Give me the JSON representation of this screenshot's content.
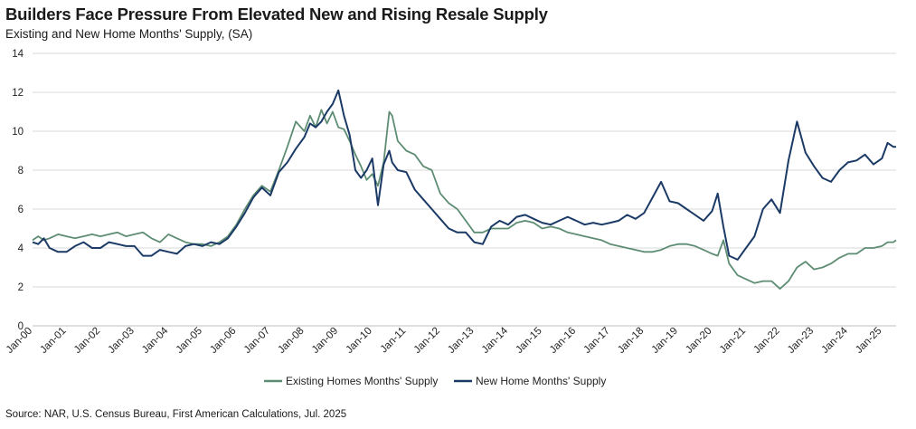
{
  "title": "Builders Face Pressure From Elevated New and Rising Resale Supply",
  "subtitle": "Existing and New Home Months' Supply, (SA)",
  "source": "Source: NAR, U.S. Census Bureau,  First American Calculations, Jul. 2025",
  "colors": {
    "existing": "#5e8d74",
    "new": "#1b3a66",
    "grid": "#d9d9d9",
    "axis": "#bfbfbf"
  },
  "chart_data": {
    "type": "line",
    "ylim": [
      0,
      14
    ],
    "y_ticks": [
      0,
      2,
      4,
      6,
      8,
      10,
      12,
      14
    ],
    "xlim": [
      "2000-01",
      "2025-06"
    ],
    "x_tick_labels": [
      "Jan-00",
      "Jan-01",
      "Jan-02",
      "Jan-03",
      "Jan-04",
      "Jan-05",
      "Jan-06",
      "Jan-07",
      "Jan-08",
      "Jan-09",
      "Jan-10",
      "Jan-11",
      "Jan-12",
      "Jan-13",
      "Jan-14",
      "Jan-15",
      "Jan-16",
      "Jan-17",
      "Jan-18",
      "Jan-19",
      "Jan-20",
      "Jan-21",
      "Jan-22",
      "Jan-23",
      "Jan-24",
      "Jan-25"
    ],
    "grid": true,
    "legend_position": "bottom",
    "series": [
      {
        "name": "Existing Homes Months' Supply",
        "color": "#5e8d74",
        "points": [
          [
            "2000-01",
            4.4
          ],
          [
            "2000-03",
            4.6
          ],
          [
            "2000-05",
            4.4
          ],
          [
            "2000-07",
            4.5
          ],
          [
            "2000-10",
            4.7
          ],
          [
            "2001-01",
            4.6
          ],
          [
            "2001-04",
            4.5
          ],
          [
            "2001-07",
            4.6
          ],
          [
            "2001-10",
            4.7
          ],
          [
            "2002-01",
            4.6
          ],
          [
            "2002-04",
            4.7
          ],
          [
            "2002-07",
            4.8
          ],
          [
            "2002-10",
            4.6
          ],
          [
            "2003-01",
            4.7
          ],
          [
            "2003-04",
            4.8
          ],
          [
            "2003-07",
            4.5
          ],
          [
            "2003-10",
            4.3
          ],
          [
            "2004-01",
            4.7
          ],
          [
            "2004-04",
            4.5
          ],
          [
            "2004-07",
            4.3
          ],
          [
            "2004-10",
            4.2
          ],
          [
            "2005-01",
            4.2
          ],
          [
            "2005-04",
            4.1
          ],
          [
            "2005-07",
            4.3
          ],
          [
            "2005-10",
            4.6
          ],
          [
            "2006-01",
            5.2
          ],
          [
            "2006-04",
            6.0
          ],
          [
            "2006-07",
            6.7
          ],
          [
            "2006-10",
            7.2
          ],
          [
            "2007-01",
            6.9
          ],
          [
            "2007-04",
            8.0
          ],
          [
            "2007-07",
            9.2
          ],
          [
            "2007-10",
            10.5
          ],
          [
            "2008-01",
            10.0
          ],
          [
            "2008-03",
            10.8
          ],
          [
            "2008-05",
            10.2
          ],
          [
            "2008-07",
            11.1
          ],
          [
            "2008-09",
            10.4
          ],
          [
            "2008-11",
            11.0
          ],
          [
            "2009-01",
            10.2
          ],
          [
            "2009-03",
            10.1
          ],
          [
            "2009-05",
            9.5
          ],
          [
            "2009-07",
            8.8
          ],
          [
            "2009-09",
            8.2
          ],
          [
            "2009-11",
            7.5
          ],
          [
            "2010-01",
            7.8
          ],
          [
            "2010-03",
            7.2
          ],
          [
            "2010-05",
            8.4
          ],
          [
            "2010-07",
            11.0
          ],
          [
            "2010-08",
            10.8
          ],
          [
            "2010-10",
            9.5
          ],
          [
            "2011-01",
            9.0
          ],
          [
            "2011-04",
            8.8
          ],
          [
            "2011-07",
            8.2
          ],
          [
            "2011-10",
            8.0
          ],
          [
            "2012-01",
            6.8
          ],
          [
            "2012-04",
            6.3
          ],
          [
            "2012-07",
            6.0
          ],
          [
            "2012-10",
            5.4
          ],
          [
            "2013-01",
            4.8
          ],
          [
            "2013-04",
            4.8
          ],
          [
            "2013-07",
            5.0
          ],
          [
            "2013-10",
            5.0
          ],
          [
            "2014-01",
            5.0
          ],
          [
            "2014-04",
            5.3
          ],
          [
            "2014-07",
            5.4
          ],
          [
            "2014-10",
            5.3
          ],
          [
            "2015-01",
            5.0
          ],
          [
            "2015-04",
            5.1
          ],
          [
            "2015-07",
            5.0
          ],
          [
            "2015-10",
            4.8
          ],
          [
            "2016-01",
            4.7
          ],
          [
            "2016-04",
            4.6
          ],
          [
            "2016-07",
            4.5
          ],
          [
            "2016-10",
            4.4
          ],
          [
            "2017-01",
            4.2
          ],
          [
            "2017-04",
            4.1
          ],
          [
            "2017-07",
            4.0
          ],
          [
            "2017-10",
            3.9
          ],
          [
            "2018-01",
            3.8
          ],
          [
            "2018-04",
            3.8
          ],
          [
            "2018-07",
            3.9
          ],
          [
            "2018-10",
            4.1
          ],
          [
            "2019-01",
            4.2
          ],
          [
            "2019-04",
            4.2
          ],
          [
            "2019-07",
            4.1
          ],
          [
            "2019-10",
            3.9
          ],
          [
            "2020-01",
            3.7
          ],
          [
            "2020-03",
            3.6
          ],
          [
            "2020-05",
            4.4
          ],
          [
            "2020-07",
            3.2
          ],
          [
            "2020-10",
            2.6
          ],
          [
            "2021-01",
            2.4
          ],
          [
            "2021-04",
            2.2
          ],
          [
            "2021-07",
            2.3
          ],
          [
            "2021-10",
            2.3
          ],
          [
            "2022-01",
            1.9
          ],
          [
            "2022-04",
            2.3
          ],
          [
            "2022-07",
            3.0
          ],
          [
            "2022-10",
            3.3
          ],
          [
            "2023-01",
            2.9
          ],
          [
            "2023-04",
            3.0
          ],
          [
            "2023-07",
            3.2
          ],
          [
            "2023-10",
            3.5
          ],
          [
            "2024-01",
            3.7
          ],
          [
            "2024-04",
            3.7
          ],
          [
            "2024-07",
            4.0
          ],
          [
            "2024-10",
            4.0
          ],
          [
            "2025-01",
            4.1
          ],
          [
            "2025-03",
            4.3
          ],
          [
            "2025-05",
            4.3
          ],
          [
            "2025-06",
            4.4
          ]
        ]
      },
      {
        "name": "New Home Months' Supply",
        "color": "#1b3a66",
        "points": [
          [
            "2000-01",
            4.3
          ],
          [
            "2000-03",
            4.2
          ],
          [
            "2000-05",
            4.5
          ],
          [
            "2000-07",
            4.0
          ],
          [
            "2000-10",
            3.8
          ],
          [
            "2001-01",
            3.8
          ],
          [
            "2001-04",
            4.1
          ],
          [
            "2001-07",
            4.3
          ],
          [
            "2001-10",
            4.0
          ],
          [
            "2002-01",
            4.0
          ],
          [
            "2002-04",
            4.3
          ],
          [
            "2002-07",
            4.2
          ],
          [
            "2002-10",
            4.1
          ],
          [
            "2003-01",
            4.1
          ],
          [
            "2003-04",
            3.6
          ],
          [
            "2003-07",
            3.6
          ],
          [
            "2003-10",
            3.9
          ],
          [
            "2004-01",
            3.8
          ],
          [
            "2004-04",
            3.7
          ],
          [
            "2004-07",
            4.1
          ],
          [
            "2004-10",
            4.2
          ],
          [
            "2005-01",
            4.1
          ],
          [
            "2005-04",
            4.3
          ],
          [
            "2005-07",
            4.2
          ],
          [
            "2005-10",
            4.5
          ],
          [
            "2006-01",
            5.1
          ],
          [
            "2006-04",
            5.8
          ],
          [
            "2006-07",
            6.6
          ],
          [
            "2006-10",
            7.1
          ],
          [
            "2007-01",
            6.7
          ],
          [
            "2007-04",
            7.9
          ],
          [
            "2007-07",
            8.4
          ],
          [
            "2007-10",
            9.1
          ],
          [
            "2008-01",
            9.7
          ],
          [
            "2008-03",
            10.4
          ],
          [
            "2008-05",
            10.2
          ],
          [
            "2008-07",
            10.5
          ],
          [
            "2008-09",
            11.0
          ],
          [
            "2008-11",
            11.4
          ],
          [
            "2009-01",
            12.1
          ],
          [
            "2009-03",
            10.8
          ],
          [
            "2009-05",
            9.8
          ],
          [
            "2009-07",
            8.0
          ],
          [
            "2009-09",
            7.6
          ],
          [
            "2009-11",
            8.0
          ],
          [
            "2010-01",
            8.6
          ],
          [
            "2010-03",
            6.2
          ],
          [
            "2010-05",
            8.3
          ],
          [
            "2010-07",
            9.0
          ],
          [
            "2010-08",
            8.4
          ],
          [
            "2010-10",
            8.0
          ],
          [
            "2011-01",
            7.9
          ],
          [
            "2011-04",
            7.0
          ],
          [
            "2011-07",
            6.5
          ],
          [
            "2011-10",
            6.0
          ],
          [
            "2012-01",
            5.5
          ],
          [
            "2012-04",
            5.0
          ],
          [
            "2012-07",
            4.8
          ],
          [
            "2012-10",
            4.8
          ],
          [
            "2013-01",
            4.3
          ],
          [
            "2013-04",
            4.2
          ],
          [
            "2013-07",
            5.1
          ],
          [
            "2013-10",
            5.4
          ],
          [
            "2014-01",
            5.2
          ],
          [
            "2014-04",
            5.6
          ],
          [
            "2014-07",
            5.7
          ],
          [
            "2014-10",
            5.5
          ],
          [
            "2015-01",
            5.3
          ],
          [
            "2015-04",
            5.2
          ],
          [
            "2015-07",
            5.4
          ],
          [
            "2015-10",
            5.6
          ],
          [
            "2016-01",
            5.4
          ],
          [
            "2016-04",
            5.2
          ],
          [
            "2016-07",
            5.3
          ],
          [
            "2016-10",
            5.2
          ],
          [
            "2017-01",
            5.3
          ],
          [
            "2017-04",
            5.4
          ],
          [
            "2017-07",
            5.7
          ],
          [
            "2017-10",
            5.5
          ],
          [
            "2018-01",
            5.8
          ],
          [
            "2018-04",
            6.6
          ],
          [
            "2018-07",
            7.4
          ],
          [
            "2018-10",
            6.4
          ],
          [
            "2019-01",
            6.3
          ],
          [
            "2019-04",
            6.0
          ],
          [
            "2019-07",
            5.7
          ],
          [
            "2019-10",
            5.4
          ],
          [
            "2020-01",
            5.9
          ],
          [
            "2020-03",
            6.8
          ],
          [
            "2020-05",
            5.1
          ],
          [
            "2020-07",
            3.6
          ],
          [
            "2020-10",
            3.4
          ],
          [
            "2021-01",
            4.0
          ],
          [
            "2021-04",
            4.6
          ],
          [
            "2021-07",
            6.0
          ],
          [
            "2021-10",
            6.5
          ],
          [
            "2022-01",
            5.8
          ],
          [
            "2022-04",
            8.5
          ],
          [
            "2022-07",
            10.5
          ],
          [
            "2022-10",
            8.9
          ],
          [
            "2023-01",
            8.2
          ],
          [
            "2023-04",
            7.6
          ],
          [
            "2023-07",
            7.4
          ],
          [
            "2023-10",
            8.0
          ],
          [
            "2024-01",
            8.4
          ],
          [
            "2024-04",
            8.5
          ],
          [
            "2024-07",
            8.8
          ],
          [
            "2024-10",
            8.3
          ],
          [
            "2025-01",
            8.6
          ],
          [
            "2025-03",
            9.4
          ],
          [
            "2025-05",
            9.2
          ],
          [
            "2025-06",
            9.2
          ]
        ]
      }
    ]
  }
}
